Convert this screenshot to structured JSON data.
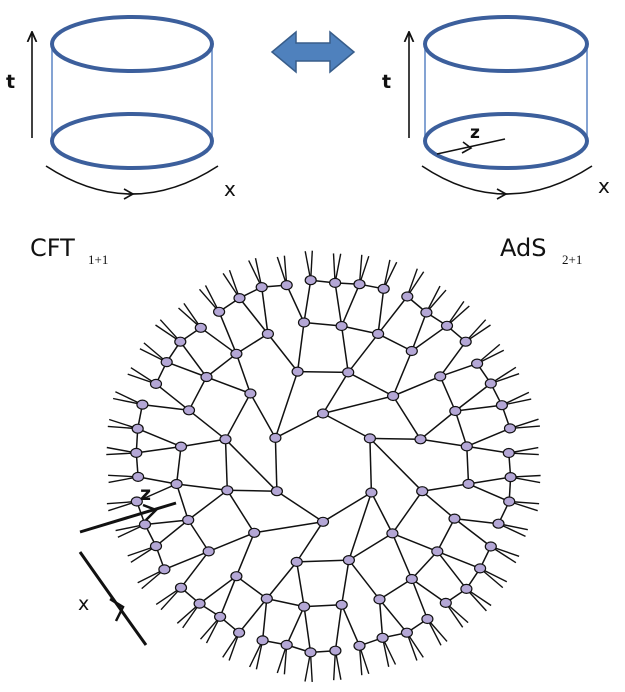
{
  "left_panel": {
    "time_label": "t",
    "space_label": "x",
    "name": "CFT",
    "name_sub": "1+1"
  },
  "right_panel": {
    "time_label": "t",
    "space_label": "x",
    "radial_label": "z",
    "name": "AdS",
    "name_sub": "2+1"
  },
  "network": {
    "radial_label": "z",
    "boundary_label": "x"
  },
  "colors": {
    "cylinder": "#3c5f9c",
    "cylinder_side": "#5b84c4",
    "arrow_fill": "#4f81bd",
    "arrow_stroke": "#385d8a",
    "node_fill": "#b4a7d6",
    "ink": "#111111"
  },
  "icons": {
    "equivalence": "double-headed-arrow-icon"
  }
}
